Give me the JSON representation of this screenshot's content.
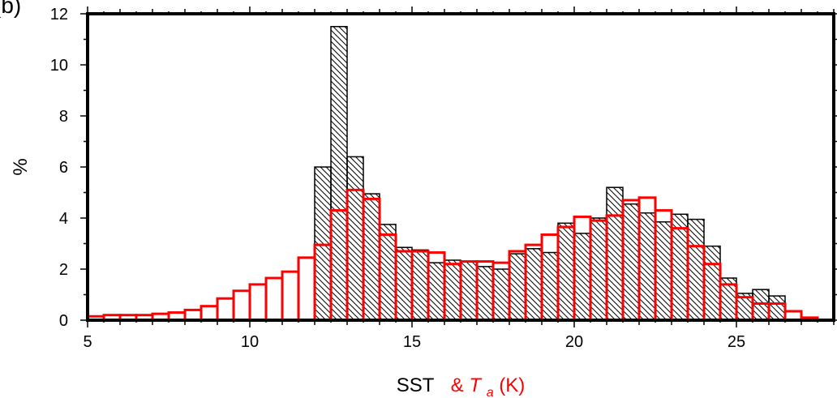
{
  "panel_label": "(b)",
  "colors": {
    "sst": "#000000",
    "ta": "#ff0000",
    "frame": "#000000"
  },
  "chart_data": {
    "type": "bar",
    "xlabel": {
      "part1": "SST",
      "part2": "& ",
      "part3": "T",
      "part3_sub": "a",
      "part4": " (K)"
    },
    "ylabel": "%",
    "xlim": [
      5,
      28
    ],
    "ylim": [
      0,
      12
    ],
    "xticks": [
      5,
      10,
      15,
      20,
      25
    ],
    "yticks": [
      0,
      2,
      4,
      6,
      8,
      10,
      12
    ],
    "bin_width": 0.5,
    "series": [
      {
        "fill": "hatched",
        "bins": [
          [
            12.25,
            6.0
          ],
          [
            12.75,
            11.5
          ],
          [
            13.25,
            6.4
          ],
          [
            13.75,
            4.95
          ],
          [
            14.25,
            3.75
          ],
          [
            14.75,
            2.85
          ],
          [
            15.25,
            2.75
          ],
          [
            15.75,
            2.25
          ],
          [
            16.25,
            2.35
          ],
          [
            16.75,
            2.3
          ],
          [
            17.25,
            2.1
          ],
          [
            17.75,
            2.0
          ],
          [
            18.25,
            2.6
          ],
          [
            18.75,
            2.8
          ],
          [
            19.25,
            2.65
          ],
          [
            19.75,
            3.8
          ],
          [
            20.25,
            3.4
          ],
          [
            20.75,
            4.0
          ],
          [
            21.25,
            5.2
          ],
          [
            21.75,
            4.55
          ],
          [
            22.25,
            4.2
          ],
          [
            22.75,
            3.85
          ],
          [
            23.25,
            4.15
          ],
          [
            23.75,
            3.95
          ],
          [
            24.25,
            2.9
          ],
          [
            24.75,
            1.65
          ],
          [
            25.25,
            1.05
          ],
          [
            25.75,
            1.2
          ],
          [
            26.25,
            0.95
          ]
        ]
      },
      {
        "fill": "none",
        "bins": [
          [
            5.25,
            0.15
          ],
          [
            5.75,
            0.2
          ],
          [
            6.25,
            0.2
          ],
          [
            6.75,
            0.2
          ],
          [
            7.25,
            0.25
          ],
          [
            7.75,
            0.3
          ],
          [
            8.25,
            0.4
          ],
          [
            8.75,
            0.55
          ],
          [
            9.25,
            0.85
          ],
          [
            9.75,
            1.15
          ],
          [
            10.25,
            1.4
          ],
          [
            10.75,
            1.65
          ],
          [
            11.25,
            1.9
          ],
          [
            11.75,
            2.45
          ],
          [
            12.25,
            2.95
          ],
          [
            12.75,
            4.3
          ],
          [
            13.25,
            5.1
          ],
          [
            13.75,
            4.75
          ],
          [
            14.25,
            3.35
          ],
          [
            14.75,
            2.7
          ],
          [
            15.25,
            2.7
          ],
          [
            15.75,
            2.65
          ],
          [
            16.25,
            2.2
          ],
          [
            16.75,
            2.3
          ],
          [
            17.25,
            2.3
          ],
          [
            17.75,
            2.25
          ],
          [
            18.25,
            2.7
          ],
          [
            18.75,
            2.95
          ],
          [
            19.25,
            3.35
          ],
          [
            19.75,
            3.65
          ],
          [
            20.25,
            4.05
          ],
          [
            20.75,
            3.9
          ],
          [
            21.25,
            4.1
          ],
          [
            21.75,
            4.7
          ],
          [
            22.25,
            4.8
          ],
          [
            22.75,
            4.3
          ],
          [
            23.25,
            3.6
          ],
          [
            23.75,
            2.9
          ],
          [
            24.25,
            2.2
          ],
          [
            24.75,
            1.4
          ],
          [
            25.25,
            0.9
          ],
          [
            25.75,
            0.65
          ],
          [
            26.25,
            0.65
          ],
          [
            26.75,
            0.35
          ],
          [
            27.25,
            0.1
          ]
        ]
      }
    ]
  }
}
